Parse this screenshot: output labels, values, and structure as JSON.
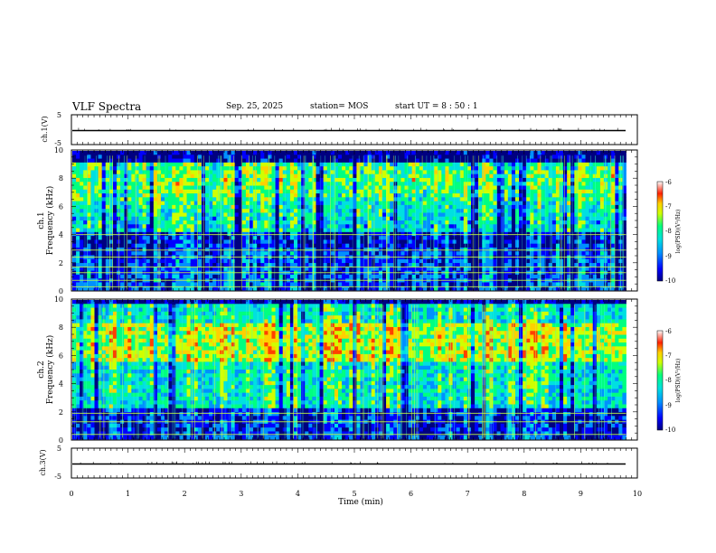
{
  "header": {
    "title": "VLF Spectra",
    "date": "Sep. 25, 2025",
    "station": "station= MOS",
    "start_ut": "start  UT =   8  : 50 : 1"
  },
  "chart_data": [
    {
      "type": "line",
      "panel": "ch.1 waveform",
      "ylabel": "ch.1(V)",
      "ylim": [
        -5,
        5
      ],
      "yticks": [
        "5",
        "-5"
      ],
      "xlim": [
        0,
        10
      ],
      "trace_level": 0
    },
    {
      "type": "heatmap",
      "panel": "ch.1 spectrogram",
      "ylabel": "ch.1\nFrequency (kHz)",
      "ylabel_top": "ch.1",
      "ylabel_bottom": "Frequency (kHz)",
      "ylim": [
        0,
        10
      ],
      "yticks": [
        "0",
        "2",
        "4",
        "6",
        "8",
        "10"
      ],
      "xlim": [
        0,
        9.8
      ],
      "colorbar": {
        "label": "log(PSD)(V²/Hz)",
        "range": [
          -10,
          -6
        ],
        "ticks": [
          "-6",
          "-7",
          "-8",
          "-9",
          "-10"
        ]
      },
      "lines_khz": [
        0.3,
        0.75,
        1.3,
        1.7,
        2.4,
        2.9,
        4.0
      ]
    },
    {
      "type": "heatmap",
      "panel": "ch.2 spectrogram",
      "ylabel_top": "ch.2",
      "ylabel_bottom": "Frequency (kHz)",
      "ylim": [
        0,
        10
      ],
      "yticks": [
        "0",
        "2",
        "4",
        "6",
        "8",
        "10"
      ],
      "xlim": [
        0,
        9.8
      ],
      "colorbar": {
        "label": "log(PSD)(V²/Hz)",
        "range": [
          -10,
          -6
        ],
        "ticks": [
          "-6",
          "-7",
          "-8",
          "-9",
          "-10"
        ]
      },
      "lines_khz": [
        0.4,
        1.3,
        1.9
      ]
    },
    {
      "type": "line",
      "panel": "ch.3 waveform",
      "ylabel": "ch.3(V)",
      "ylim": [
        -5,
        5
      ],
      "yticks": [
        "5",
        "-5"
      ],
      "xlim": [
        0,
        10
      ],
      "trace_level": 0
    }
  ],
  "xaxis": {
    "label": "Time (min)",
    "range": [
      0,
      10
    ],
    "ticks": [
      "0",
      "1",
      "2",
      "3",
      "4",
      "5",
      "6",
      "7",
      "8",
      "9",
      "10"
    ]
  },
  "colors": {
    "colormap": [
      "#000080",
      "#0000ff",
      "#0090ff",
      "#00e0e0",
      "#00ff80",
      "#d0ff00",
      "#ffd000",
      "#ff4000",
      "#ffffff"
    ]
  }
}
